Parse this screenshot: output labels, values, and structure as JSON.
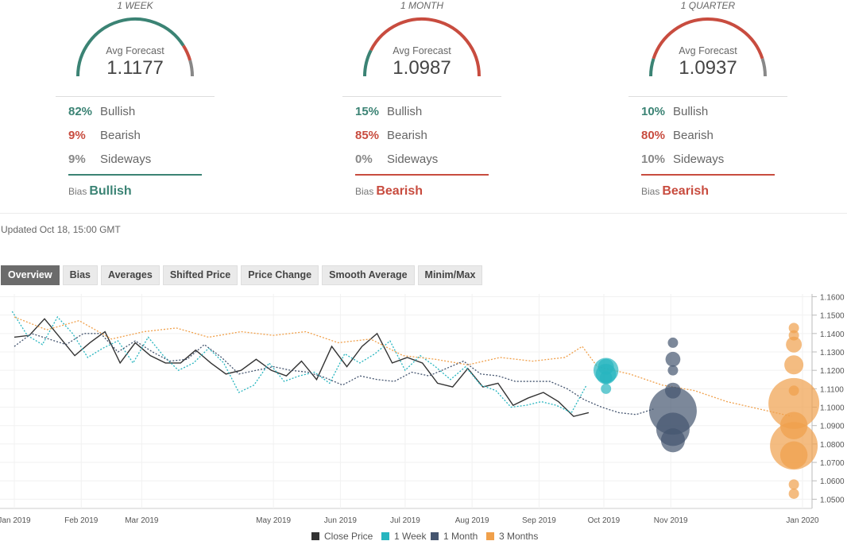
{
  "colors": {
    "bullish": "#3b8374",
    "bearish": "#c84c3f",
    "sideways": "#888888",
    "close": "#333333",
    "week": "#27b5bf",
    "month": "#45556f",
    "months3": "#f0a04b"
  },
  "panels": [
    {
      "period": "1 WEEK",
      "avg_label": "Avg Forecast",
      "avg_value": "1.1177",
      "bullish_pct": "82%",
      "bearish_pct": "9%",
      "sideways_pct": "9%",
      "bullish_label": "Bullish",
      "bearish_label": "Bearish",
      "sideways_label": "Sideways",
      "bias_label": "Bias",
      "bias_value": "Bullish",
      "bullish": 82,
      "bearish": 9,
      "sideways": 9,
      "bias_color": "#3b8374"
    },
    {
      "period": "1 MONTH",
      "avg_label": "Avg Forecast",
      "avg_value": "1.0987",
      "bullish_pct": "15%",
      "bearish_pct": "85%",
      "sideways_pct": "0%",
      "bullish_label": "Bullish",
      "bearish_label": "Bearish",
      "sideways_label": "Sideways",
      "bias_label": "Bias",
      "bias_value": "Bearish",
      "bullish": 15,
      "bearish": 85,
      "sideways": 0,
      "bias_color": "#c84c3f"
    },
    {
      "period": "1 QUARTER",
      "avg_label": "Avg Forecast",
      "avg_value": "1.0937",
      "bullish_pct": "10%",
      "bearish_pct": "80%",
      "sideways_pct": "10%",
      "bullish_label": "Bullish",
      "bearish_label": "Bearish",
      "sideways_label": "Sideways",
      "bias_label": "Bias",
      "bias_value": "Bearish",
      "bullish": 10,
      "bearish": 80,
      "sideways": 10,
      "bias_color": "#c84c3f"
    }
  ],
  "updated": "Updated Oct 18, 15:00 GMT",
  "tabs": [
    "Overview",
    "Bias",
    "Averages",
    "Shifted Price",
    "Price Change",
    "Smooth Average",
    "Minim/Max"
  ],
  "active_tab": "Overview",
  "chart_data": {
    "type": "line",
    "x_labels": [
      "Jan 2019",
      "Feb 2019",
      "Mar 2019",
      "May 2019",
      "Jun 2019",
      "Jul 2019",
      "Aug 2019",
      "Sep 2019",
      "Oct 2019",
      "Nov 2019",
      "Jan 2020"
    ],
    "x_label_days": [
      0,
      31,
      59,
      120,
      151,
      181,
      212,
      243,
      273,
      304,
      365
    ],
    "xlim_days": [
      0,
      365
    ],
    "ylim": [
      1.045,
      1.1615
    ],
    "y_ticks": [
      "1.1600",
      "1.1500",
      "1.1400",
      "1.1300",
      "1.1200",
      "1.1100",
      "1.1000",
      "1.0900",
      "1.0800",
      "1.0700",
      "1.0600",
      "1.0500"
    ],
    "y_tick_values": [
      1.16,
      1.15,
      1.14,
      1.13,
      1.12,
      1.11,
      1.1,
      1.09,
      1.08,
      1.07,
      1.06,
      1.05
    ],
    "legend": [
      "Close Price",
      "1 Week",
      "1 Month",
      "3 Months"
    ],
    "series": [
      {
        "name": "Close Price",
        "style": "solid",
        "color": "#333333",
        "x": [
          0,
          7,
          14,
          21,
          28,
          35,
          42,
          49,
          56,
          63,
          70,
          77,
          84,
          91,
          98,
          105,
          112,
          119,
          126,
          133,
          140,
          147,
          154,
          161,
          168,
          175,
          182,
          189,
          196,
          203,
          210,
          217,
          224,
          231,
          238,
          245,
          252,
          259,
          266
        ],
        "y": [
          1.138,
          1.139,
          1.148,
          1.138,
          1.128,
          1.135,
          1.141,
          1.124,
          1.135,
          1.128,
          1.124,
          1.124,
          1.131,
          1.124,
          1.118,
          1.12,
          1.126,
          1.12,
          1.117,
          1.125,
          1.115,
          1.133,
          1.122,
          1.133,
          1.14,
          1.124,
          1.127,
          1.124,
          1.113,
          1.111,
          1.121,
          1.111,
          1.113,
          1.101,
          1.105,
          1.108,
          1.103,
          1.095,
          1.097
        ]
      },
      {
        "name": "1 Week",
        "style": "dotted",
        "color": "#27b5bf",
        "x": [
          -1,
          6,
          13,
          20,
          27,
          34,
          41,
          48,
          55,
          62,
          69,
          76,
          83,
          90,
          97,
          104,
          111,
          118,
          125,
          132,
          139,
          146,
          153,
          160,
          167,
          174,
          181,
          188,
          195,
          202,
          209,
          216,
          223,
          230,
          237,
          244,
          251,
          258,
          265
        ],
        "y": [
          1.152,
          1.139,
          1.134,
          1.149,
          1.14,
          1.127,
          1.132,
          1.136,
          1.124,
          1.138,
          1.128,
          1.12,
          1.124,
          1.132,
          1.124,
          1.108,
          1.112,
          1.124,
          1.114,
          1.117,
          1.119,
          1.113,
          1.129,
          1.124,
          1.129,
          1.136,
          1.12,
          1.128,
          1.122,
          1.115,
          1.122,
          1.112,
          1.109,
          1.1,
          1.101,
          1.103,
          1.101,
          1.097,
          1.112
        ]
      },
      {
        "name": "1 Month",
        "style": "dotted",
        "color": "#45556f",
        "x": [
          0,
          8,
          16,
          24,
          32,
          40,
          48,
          56,
          64,
          72,
          80,
          88,
          96,
          104,
          112,
          120,
          128,
          136,
          144,
          152,
          160,
          168,
          176,
          184,
          192,
          200,
          208,
          216,
          224,
          232,
          240,
          248,
          256,
          264,
          272,
          280,
          288,
          296
        ],
        "y": [
          1.133,
          1.14,
          1.137,
          1.134,
          1.14,
          1.14,
          1.13,
          1.136,
          1.13,
          1.125,
          1.126,
          1.134,
          1.127,
          1.118,
          1.12,
          1.122,
          1.12,
          1.119,
          1.116,
          1.112,
          1.117,
          1.115,
          1.114,
          1.119,
          1.117,
          1.121,
          1.125,
          1.118,
          1.117,
          1.114,
          1.114,
          1.114,
          1.11,
          1.104,
          1.1,
          1.097,
          1.096,
          1.099
        ]
      },
      {
        "name": "3 Months",
        "style": "dotted",
        "color": "#f0a04b",
        "x": [
          0,
          15,
          30,
          45,
          60,
          75,
          90,
          105,
          120,
          135,
          150,
          165,
          180,
          195,
          210,
          225,
          240,
          255,
          263,
          270,
          285,
          300,
          315,
          330,
          345,
          360
        ],
        "y": [
          1.149,
          1.142,
          1.147,
          1.137,
          1.141,
          1.143,
          1.138,
          1.141,
          1.139,
          1.141,
          1.135,
          1.137,
          1.128,
          1.126,
          1.123,
          1.127,
          1.125,
          1.127,
          1.133,
          1.122,
          1.118,
          1.112,
          1.109,
          1.103,
          1.099,
          1.095
        ]
      }
    ],
    "bubbles": [
      {
        "series": "1 Week",
        "x": 274,
        "y": 1.12,
        "size": 2.0
      },
      {
        "series": "1 Week",
        "x": 274,
        "y": 1.118,
        "size": 1.2
      },
      {
        "series": "1 Week",
        "x": 274,
        "y": 1.122,
        "size": 0.6
      },
      {
        "series": "1 Week",
        "x": 274,
        "y": 1.116,
        "size": 0.3
      },
      {
        "series": "1 Week",
        "x": 274,
        "y": 1.11,
        "size": 0.15
      },
      {
        "series": "1 Month",
        "x": 305,
        "y": 1.135,
        "size": 0.15
      },
      {
        "series": "1 Month",
        "x": 305,
        "y": 1.126,
        "size": 0.5
      },
      {
        "series": "1 Month",
        "x": 305,
        "y": 1.12,
        "size": 0.15
      },
      {
        "series": "1 Month",
        "x": 305,
        "y": 1.109,
        "size": 0.6
      },
      {
        "series": "1 Month",
        "x": 305,
        "y": 1.098,
        "size": 9.0
      },
      {
        "series": "1 Month",
        "x": 305,
        "y": 1.088,
        "size": 4.0
      },
      {
        "series": "1 Month",
        "x": 305,
        "y": 1.082,
        "size": 1.8
      },
      {
        "series": "3 Months",
        "x": 361,
        "y": 1.143,
        "size": 0.15
      },
      {
        "series": "3 Months",
        "x": 361,
        "y": 1.139,
        "size": 0.15
      },
      {
        "series": "3 Months",
        "x": 361,
        "y": 1.134,
        "size": 0.6
      },
      {
        "series": "3 Months",
        "x": 361,
        "y": 1.123,
        "size": 1.0
      },
      {
        "series": "3 Months",
        "x": 361,
        "y": 1.109,
        "size": 0.15
      },
      {
        "series": "3 Months",
        "x": 361,
        "y": 1.102,
        "size": 11.0
      },
      {
        "series": "3 Months",
        "x": 361,
        "y": 1.09,
        "size": 2.5
      },
      {
        "series": "3 Months",
        "x": 361,
        "y": 1.079,
        "size": 9.0
      },
      {
        "series": "3 Months",
        "x": 361,
        "y": 1.074,
        "size": 2.5
      },
      {
        "series": "3 Months",
        "x": 361,
        "y": 1.058,
        "size": 0.15
      },
      {
        "series": "3 Months",
        "x": 361,
        "y": 1.053,
        "size": 0.15
      }
    ]
  }
}
